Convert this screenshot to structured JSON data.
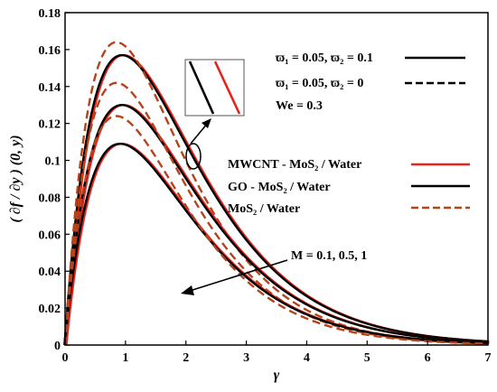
{
  "chart_data": {
    "type": "line",
    "xlabel": "γ",
    "ylabel": "( ∂f / ∂y ) (0, y)",
    "xlim": [
      0,
      7
    ],
    "ylim": [
      0,
      0.18
    ],
    "xticks": [
      "0",
      "1",
      "2",
      "3",
      "4",
      "5",
      "6",
      "7"
    ],
    "yticks": [
      "0",
      "0.02",
      "0.04",
      "0.06",
      "0.08",
      "0.1",
      "0.12",
      "0.14",
      "0.16",
      "0.18"
    ],
    "grid": false,
    "legend_top": {
      "placement": "top-right",
      "entries": [
        {
          "text": "ϖ₁ = 0.05, ϖ₂ = 0.1",
          "style": "solid",
          "color": "#000000"
        },
        {
          "text": "ϖ₁ = 0.05, ϖ₂ = 0",
          "style": "dashed",
          "color": "#000000"
        },
        {
          "text": "We = 0.3",
          "style": "none",
          "color": "#000000"
        }
      ]
    },
    "legend_mid": {
      "placement": "center-right",
      "entries": [
        {
          "text": "MWCNT - MoS₂ / Water",
          "style": "solid",
          "color": "#e8221c"
        },
        {
          "text": "GO - MoS₂ / Water",
          "style": "solid",
          "color": "#000000"
        },
        {
          "text": "MoS₂ / Water",
          "style": "dashed",
          "color": "#b5431b"
        }
      ]
    },
    "annotation": "M = 0.1, 0.5, 1",
    "colors": {
      "mwcnt": "#e8221c",
      "go": "#000000",
      "mos2": "#b5431b"
    },
    "curve_shape": "a * y * exp(-y / b)",
    "series": [
      {
        "group": "M = 0.1",
        "line": "ϖ₂ = 0.1",
        "peak_x": 0.95,
        "peak_y": 0.157
      },
      {
        "group": "M = 0.1",
        "line": "ϖ₂ = 0",
        "peak_x": 0.85,
        "peak_y": 0.164
      },
      {
        "group": "M = 0.5",
        "line": "ϖ₂ = 0.1",
        "peak_x": 0.95,
        "peak_y": 0.13
      },
      {
        "group": "M = 0.5",
        "line": "ϖ₂ = 0",
        "peak_x": 0.85,
        "peak_y": 0.142
      },
      {
        "group": "M = 1",
        "line": "ϖ₂ = 0.1",
        "peak_x": 0.92,
        "peak_y": 0.109
      },
      {
        "group": "M = 1",
        "line": "ϖ₂ = 0",
        "peak_x": 0.85,
        "peak_y": 0.124
      }
    ]
  }
}
